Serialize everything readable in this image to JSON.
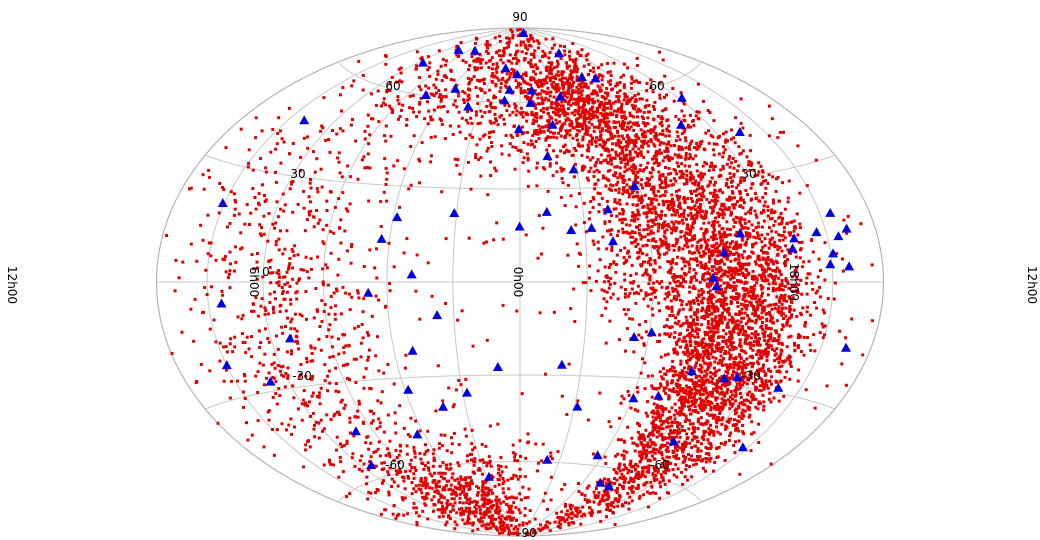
{
  "chart_data": {
    "type": "scatter",
    "projection": "aitoff-hammer",
    "title": "",
    "xlabel": "",
    "ylabel": "",
    "grid": true,
    "longitude_labels": [
      {
        "text": "12h00",
        "lon": 180
      },
      {
        "text": "6h00",
        "lon": 90
      },
      {
        "text": "0h00",
        "lon": 0
      },
      {
        "text": "18h00",
        "lon": -90
      },
      {
        "text": "12h00",
        "lon": -180
      }
    ],
    "latitude_labels": [
      {
        "text": "90",
        "lat": 90
      },
      {
        "text": "60",
        "lat": 60
      },
      {
        "text": "60",
        "lat": 60
      },
      {
        "text": "30",
        "lat": 30
      },
      {
        "text": "30",
        "lat": 30
      },
      {
        "text": "0",
        "lat": 0
      },
      {
        "text": "-30",
        "lat": -30
      },
      {
        "text": "-30",
        "lat": -30
      },
      {
        "text": "-60",
        "lat": -60
      },
      {
        "text": "-60",
        "lat": -60
      },
      {
        "text": "-90",
        "lat": -90
      }
    ],
    "series": [
      {
        "marker": "square",
        "color": "#e00000",
        "approx_count": 7000,
        "density_regions": [
          {
            "lon": -90,
            "lat": -15,
            "spread_lon": 12,
            "spread_lat": 35,
            "weight": 0.28
          },
          {
            "lon": -118,
            "lat": -15,
            "spread_lon": 12,
            "spread_lat": 30,
            "weight": 0.2
          },
          {
            "lon": -60,
            "lat": 25,
            "spread_lon": 15,
            "spread_lat": 18,
            "weight": 0.12
          },
          {
            "lon": -40,
            "lat": 55,
            "spread_lon": 25,
            "spread_lat": 10,
            "weight": 0.1
          },
          {
            "lon": 110,
            "lat": -10,
            "spread_lon": 25,
            "spread_lat": 35,
            "weight": 0.1
          },
          {
            "lon": 60,
            "lat": -70,
            "spread_lon": 40,
            "spread_lat": 10,
            "weight": 0.08
          },
          {
            "lon": 20,
            "lat": 65,
            "spread_lon": 50,
            "spread_lat": 12,
            "weight": 0.07
          },
          {
            "lon": 0,
            "lat": 0,
            "spread_lon": 180,
            "spread_lat": 90,
            "weight": 0.05
          }
        ]
      },
      {
        "marker": "triangle",
        "color": "#0000dd",
        "points": [
          [
            -26.2,
            87.5
          ],
          [
            80,
            78
          ],
          [
            17.3,
            72.7
          ],
          [
            -65.7,
            77.6
          ],
          [
            3,
            70.4
          ],
          [
            -10.2,
            64.2
          ],
          [
            12.1,
            60.5
          ],
          [
            56.4,
            63.6
          ],
          [
            -73.9,
            66.6
          ],
          [
            0.7,
            50.2
          ],
          [
            -21.1,
            51.6
          ],
          [
            139.5,
            45.1
          ],
          [
            -12.7,
            22.3
          ],
          [
            -28.2,
            36.1
          ],
          [
            -41.9,
            22.8
          ],
          [
            -23.6,
            16.4
          ],
          [
            -33.1,
            17
          ],
          [
            -57.7,
            29.9
          ],
          [
            -42.5,
            12.7
          ],
          [
            58.1,
            20
          ],
          [
            63.8,
            13.1
          ],
          [
            48.7,
            2.2
          ],
          [
            0.2,
            17.6
          ],
          [
            -89.9,
            -1.4
          ],
          [
            68.8,
            -3.4
          ],
          [
            37.6,
            -10.6
          ],
          [
            -86,
            -27
          ],
          [
            -73.7,
            -35.3
          ],
          [
            42.5,
            -40.2
          ],
          [
            27.8,
            -35.8
          ],
          [
            10.8,
            -27.5
          ],
          [
            -31.6,
            -40.4
          ],
          [
            -20.4,
            -26.7
          ],
          [
            150,
            -21.5
          ],
          [
            -137.2,
            -28.7
          ],
          [
            -147.2,
            -45.6
          ],
          [
            -164.8,
            -16.1
          ],
          [
            110.2,
            -16.2
          ],
          [
            130.2,
            -27.5
          ],
          [
            64.6,
            -48.7
          ],
          [
            113,
            -55.8
          ],
          [
            -56.3,
            -56.5
          ],
          [
            -87.6,
            -66.3
          ],
          [
            28.2,
            -65.5
          ],
          [
            -76.2,
            -65.7
          ],
          [
            58.3,
            -34
          ],
          [
            51.1,
            -21.7
          ],
          [
            100.9,
            -45.2
          ],
          [
            142.7,
            -5.7
          ],
          [
            -20.7,
            -59.3
          ],
          [
            -111.2,
            -27.4
          ],
          [
            -99.7,
            -48.7
          ],
          [
            150.9,
            20.1
          ],
          [
            -156.4,
            11.3
          ],
          [
            -131.5,
            11.6
          ],
          [
            -156,
            17.2
          ],
          [
            -129.6,
            8.9
          ],
          [
            -104.2,
            13.8
          ],
          [
            -94.5,
            8.5
          ],
          [
            -88.4,
            1.1
          ],
          [
            -104.6,
            -28.2
          ],
          [
            -62.5,
            67.8
          ],
          [
            38.3,
            57.7
          ],
          [
            -122.2,
            54.9
          ],
          [
            -102.7,
            47.4
          ],
          [
            -32.7,
            61.6
          ],
          [
            104.4,
            76.8
          ],
          [
            75.6,
            60.1
          ],
          [
            -8,
            59.6
          ],
          [
            9.1,
            64.5
          ],
          [
            31.1,
            21.8
          ],
          [
            -15.2,
            40.8
          ],
          [
            114.7,
            69.8
          ],
          [
            -60.8,
            -36.7
          ],
          [
            -61.2,
            -15.7
          ],
          [
            -53.2,
            -17.3
          ],
          [
            -134.5,
            41.9
          ],
          [
            -162.4,
            12.9
          ],
          [
            -151.3,
            7.1
          ],
          [
            -159.6,
            3.7
          ],
          [
            -144.6,
            12.8
          ],
          [
            -149,
            4.4
          ]
        ]
      }
    ]
  }
}
